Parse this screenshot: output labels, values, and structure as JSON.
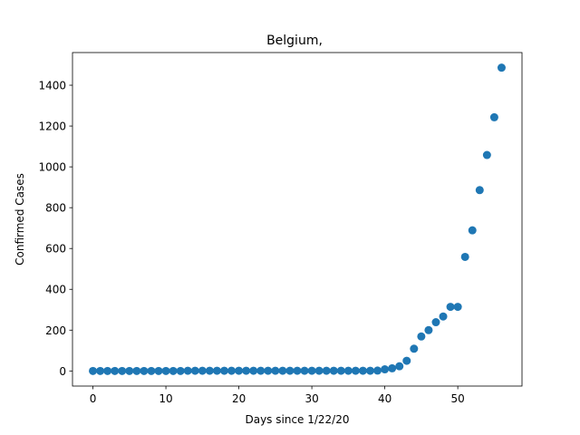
{
  "chart_data": {
    "type": "scatter",
    "title": "Belgium,",
    "xlabel": "Days since 1/22/20",
    "ylabel": "Confirmed Cases",
    "color": "#1f77b4",
    "x": [
      0,
      1,
      2,
      3,
      4,
      5,
      6,
      7,
      8,
      9,
      10,
      11,
      12,
      13,
      14,
      15,
      16,
      17,
      18,
      19,
      20,
      21,
      22,
      23,
      24,
      25,
      26,
      27,
      28,
      29,
      30,
      31,
      32,
      33,
      34,
      35,
      36,
      37,
      38,
      39,
      40,
      41,
      42,
      43,
      44,
      45,
      46,
      47,
      48,
      49,
      50,
      51,
      52,
      53,
      54,
      55,
      56
    ],
    "values": [
      0,
      0,
      0,
      0,
      0,
      0,
      0,
      0,
      0,
      0,
      0,
      0,
      0,
      1,
      1,
      1,
      1,
      1,
      1,
      1,
      1,
      1,
      1,
      1,
      1,
      1,
      1,
      1,
      1,
      1,
      1,
      1,
      1,
      1,
      1,
      1,
      1,
      1,
      1,
      2,
      8,
      13,
      23,
      50,
      109,
      169,
      200,
      239,
      267,
      314,
      314,
      559,
      689,
      886,
      1058,
      1243,
      1486
    ],
    "xlim": [
      -2.8,
      58.8
    ],
    "ylim": [
      -74,
      1560
    ],
    "xticks": [
      0,
      10,
      20,
      30,
      40,
      50
    ],
    "yticks": [
      0,
      200,
      400,
      600,
      800,
      1000,
      1200,
      1400
    ]
  }
}
